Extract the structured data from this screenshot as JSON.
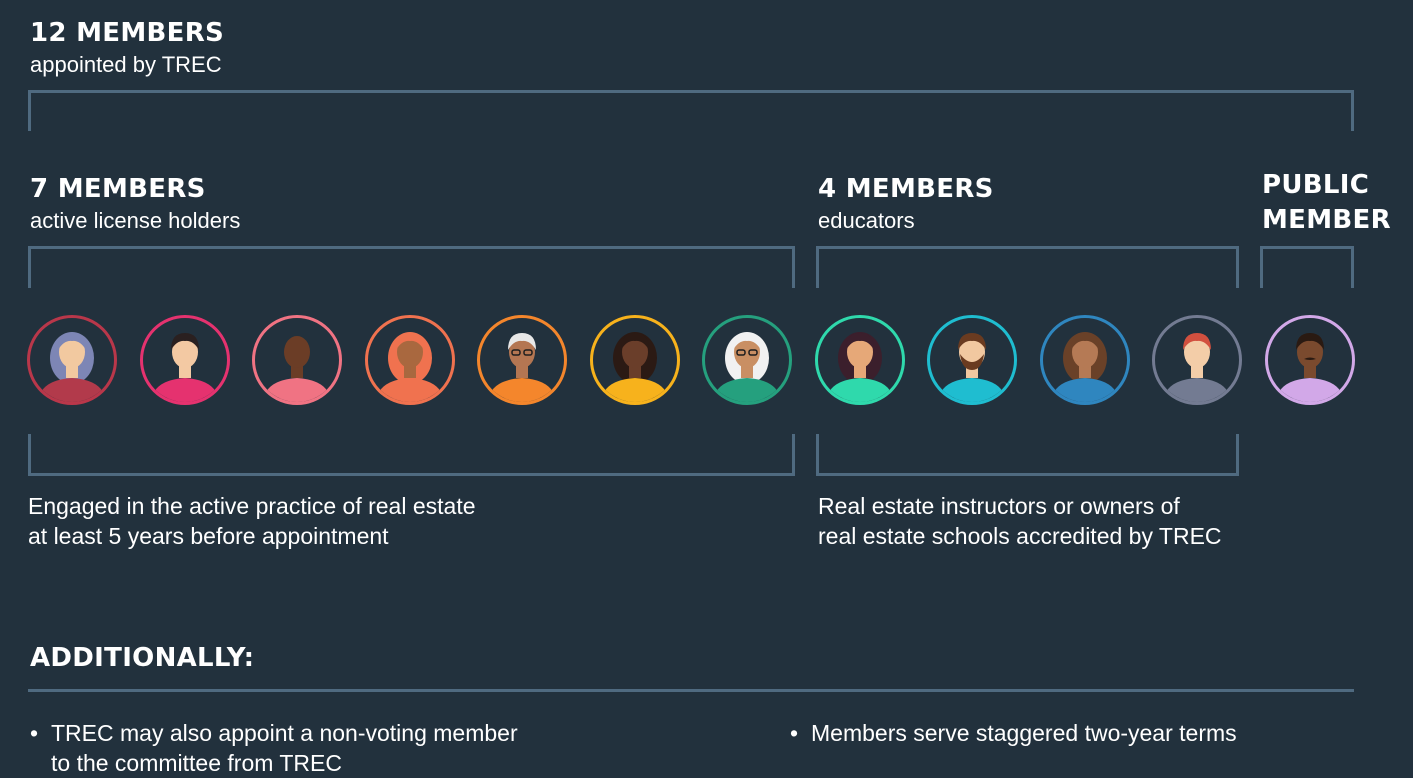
{
  "total": {
    "heading": "12 MEMBERS",
    "sub": "appointed by TREC"
  },
  "groups": [
    {
      "heading": "7 MEMBERS",
      "sub": "active license holders",
      "description": [
        "Engaged in the active practice of real estate",
        "at least 5 years before appointment"
      ]
    },
    {
      "heading": "4 MEMBERS",
      "sub": "educators",
      "description": [
        "Real estate instructors or owners of",
        "real estate schools accredited by TREC"
      ]
    },
    {
      "heading": [
        "PUBLIC",
        "MEMBER"
      ]
    }
  ],
  "additionally": {
    "heading": "ADDITIONALLY:",
    "bullets": [
      [
        "TREC may also appoint a non-voting member",
        "to the committee from TREC"
      ],
      [
        "Members serve staggered two-year terms"
      ]
    ]
  },
  "avatars": [
    {
      "icon": "person-long-wavy-hair-icon",
      "ring": "#b9374a",
      "shirt": "#b23a4b",
      "skin": "#f2c9a0",
      "hair": "#7d86b5"
    },
    {
      "icon": "person-short-hair-icon",
      "ring": "#e5326f",
      "shirt": "#e5326f",
      "skin": "#f3c9a3",
      "hair": "#2a2020"
    },
    {
      "icon": "person-bald-icon",
      "ring": "#f07383",
      "shirt": "#f07383",
      "skin": "#6b3d26",
      "hair": "#4a2a1a"
    },
    {
      "icon": "person-hijab-icon",
      "ring": "#f0724f",
      "shirt": "#f0724f",
      "skin": "#a9683f",
      "hair": "#f0724f"
    },
    {
      "icon": "person-glasses-white-hair-icon",
      "ring": "#f4862c",
      "shirt": "#f4862c",
      "skin": "#b47652",
      "hair": "#e8e8e8"
    },
    {
      "icon": "person-curly-hair-icon",
      "ring": "#f7b21c",
      "shirt": "#f7b21c",
      "skin": "#6a3e2a",
      "hair": "#2b1a14"
    },
    {
      "icon": "person-white-bob-glasses-icon",
      "ring": "#25a07e",
      "shirt": "#25a07e",
      "skin": "#c98f63",
      "hair": "#f1f1f1"
    },
    {
      "icon": "person-long-dark-hair-icon",
      "ring": "#2fd9ac",
      "shirt": "#2fd9ac",
      "skin": "#e6a878",
      "hair": "#3b1f2c"
    },
    {
      "icon": "person-beard-icon",
      "ring": "#1fbdd0",
      "shirt": "#1fbdd0",
      "skin": "#f1c8a0",
      "hair": "#6a3b20"
    },
    {
      "icon": "person-medium-hair-icon",
      "ring": "#2f86bf",
      "shirt": "#2f86bf",
      "skin": "#b57a55",
      "hair": "#6a4128"
    },
    {
      "icon": "person-red-hair-icon",
      "ring": "#737b92",
      "shirt": "#737b92",
      "skin": "#f3cda8",
      "hair": "#d2503f"
    },
    {
      "icon": "person-mustache-icon",
      "ring": "#d2a8e8",
      "shirt": "#d2a8e8",
      "skin": "#7a4a2e",
      "hair": "#2a1a12"
    }
  ]
}
